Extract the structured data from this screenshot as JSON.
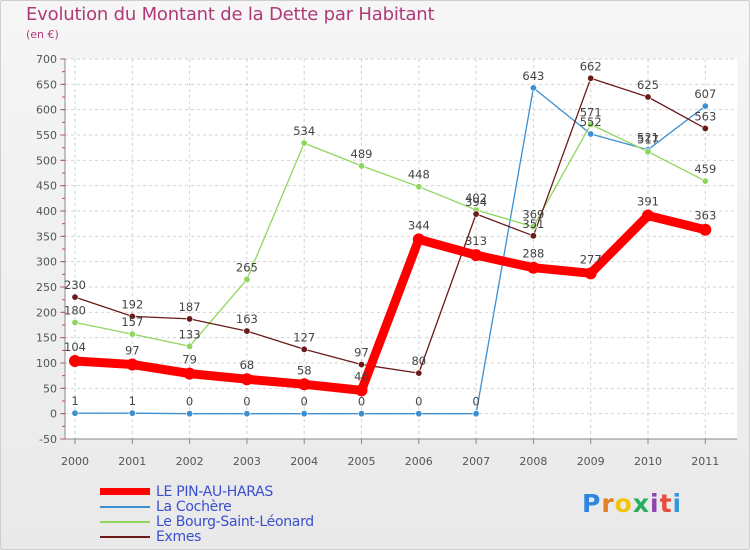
{
  "chart_data": {
    "type": "line",
    "title": "Evolution du Montant de la Dette par Habitant",
    "subtitle": "(en €)",
    "xlabel": "",
    "ylabel": "",
    "ylim": [
      -50,
      700
    ],
    "yticks": [
      -50,
      0,
      50,
      100,
      150,
      200,
      250,
      300,
      350,
      400,
      450,
      500,
      550,
      600,
      650,
      700
    ],
    "grid": true,
    "legend_position": "bottom-left",
    "x": [
      "2000",
      "2001",
      "2002",
      "2003",
      "2004",
      "2005",
      "2006",
      "2007",
      "2008",
      "2009",
      "2010",
      "2011"
    ],
    "series": [
      {
        "name": "LE PIN-AU-HARAS",
        "color": "#ff0000",
        "values": [
          104,
          97,
          79,
          68,
          58,
          46,
          344,
          313,
          288,
          277,
          391,
          363
        ]
      },
      {
        "name": "La Cochère",
        "color": "#3c8fd0",
        "values": [
          1,
          1,
          0,
          0,
          0,
          0,
          0,
          0,
          643,
          552,
          521,
          607
        ]
      },
      {
        "name": "Le Bourg-Saint-Léonard",
        "color": "#8fd65e",
        "values": [
          180,
          157,
          133,
          265,
          534,
          489,
          448,
          402,
          369,
          571,
          517,
          459
        ]
      },
      {
        "name": "Exmes",
        "color": "#6b1a1a",
        "values": [
          230,
          192,
          187,
          163,
          127,
          97,
          80,
          394,
          351,
          662,
          625,
          563
        ]
      }
    ]
  },
  "logo": {
    "letters": [
      "P",
      "r",
      "o",
      "x",
      "i",
      "t",
      "i"
    ],
    "colors": [
      "#2e86de",
      "#e67e22",
      "#f1c40f",
      "#27ae60",
      "#8e44ad",
      "#e74c3c",
      "#3498db"
    ]
  }
}
